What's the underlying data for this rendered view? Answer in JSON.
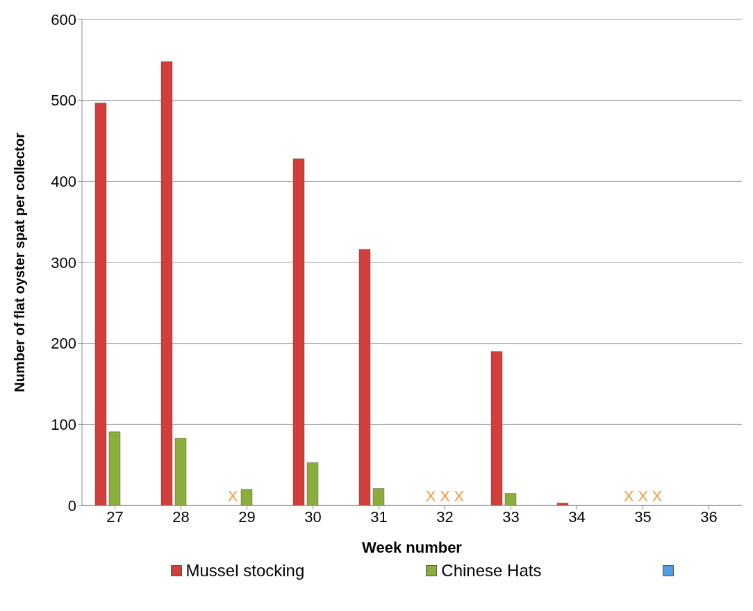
{
  "chart_data": {
    "type": "bar",
    "xlabel": "Week number",
    "ylabel": "Number of flat oyster spat per collector",
    "categories": [
      "27",
      "28",
      "29",
      "30",
      "31",
      "32",
      "33",
      "34",
      "35",
      "36"
    ],
    "series": [
      {
        "name": "Mussel stocking",
        "color": "#d23f3a",
        "values": [
          497,
          548,
          null,
          428,
          316,
          null,
          190,
          3,
          null,
          0
        ]
      },
      {
        "name": "Chinese Hats",
        "color": "#8aad3b",
        "values": [
          91,
          83,
          20,
          53,
          21,
          null,
          15,
          0,
          null,
          0
        ]
      },
      {
        "color": "#4f9de0",
        "values": [
          0,
          0,
          0,
          0,
          0,
          null,
          0,
          0,
          null,
          0
        ]
      }
    ],
    "ylim": [
      0,
      600
    ],
    "yticks": [
      0,
      100,
      200,
      300,
      400,
      500,
      600
    ],
    "grid": "y",
    "legend": "bottom",
    "annotations": [
      "X",
      "X",
      "X",
      "X",
      "X",
      "X",
      "X"
    ]
  }
}
